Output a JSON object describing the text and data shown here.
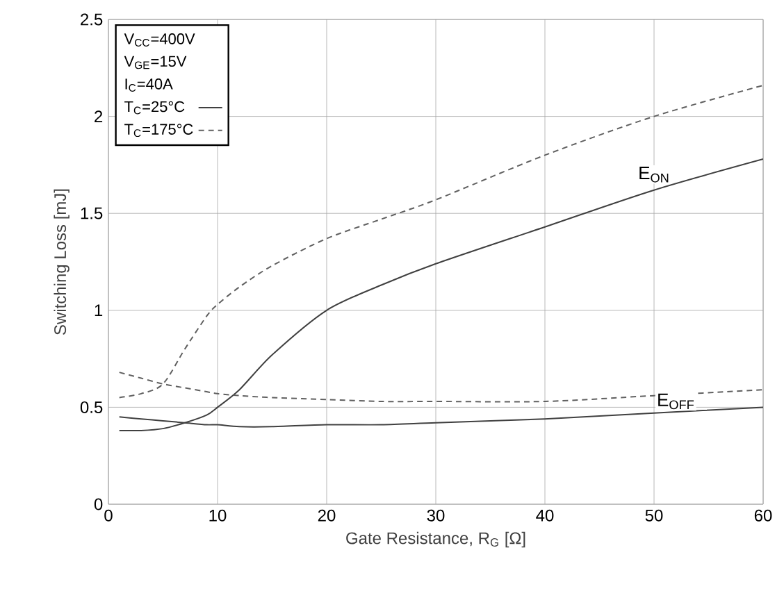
{
  "chart_data": {
    "type": "line",
    "xlabel": "Gate Resistance, R$_{G}$ [Ω]",
    "ylabel": "Switching Loss [mJ]",
    "x": [
      1,
      3,
      5,
      7,
      9,
      10,
      12,
      15,
      20,
      25,
      30,
      40,
      50,
      60
    ],
    "series": [
      {
        "name": "T$_{C}$=25°C",
        "color": "#404040",
        "line_style": "solid",
        "values": [
          0.38,
          0.38,
          0.39,
          0.42,
          0.46,
          0.5,
          0.59,
          0.77,
          1.0,
          1.13,
          1.24,
          1.43,
          1.62,
          1.78
        ]
      },
      {
        "name": "T$_{C}$=175°C",
        "color": "#606060",
        "line_style": "dashed",
        "values": [
          0.55,
          0.57,
          0.62,
          0.8,
          0.97,
          1.03,
          1.12,
          1.23,
          1.37,
          1.47,
          1.57,
          1.8,
          2.0,
          2.16
        ]
      },
      {
        "color": "#404040",
        "line_style": "solid",
        "values": [
          0.45,
          0.44,
          0.43,
          0.42,
          0.41,
          0.41,
          0.4,
          0.4,
          0.41,
          0.41,
          0.42,
          0.44,
          0.47,
          0.5
        ]
      },
      {
        "color": "#606060",
        "line_style": "dashed",
        "values": [
          0.68,
          0.65,
          0.62,
          0.6,
          0.58,
          0.57,
          0.56,
          0.55,
          0.54,
          0.53,
          0.53,
          0.53,
          0.56,
          0.59
        ]
      }
    ],
    "annotations": [
      "V$_{CC}$=400V",
      "V$_{GE}$=15V",
      "I$_{C}$=40A",
      {
        "text": "E$_{ON}$",
        "x": 50,
        "y": 1.7
      },
      {
        "text": "E$_{OFF}$",
        "x": 52,
        "y": 0.53
      }
    ],
    "xlim": [
      0,
      60
    ],
    "xticks": [
      0,
      10,
      20,
      30,
      40,
      50,
      60
    ],
    "ylim": [
      0,
      2.5
    ],
    "yticks": [
      0,
      0.5,
      1,
      1.5,
      2,
      2.5
    ],
    "grid": true,
    "legend": "top left"
  }
}
